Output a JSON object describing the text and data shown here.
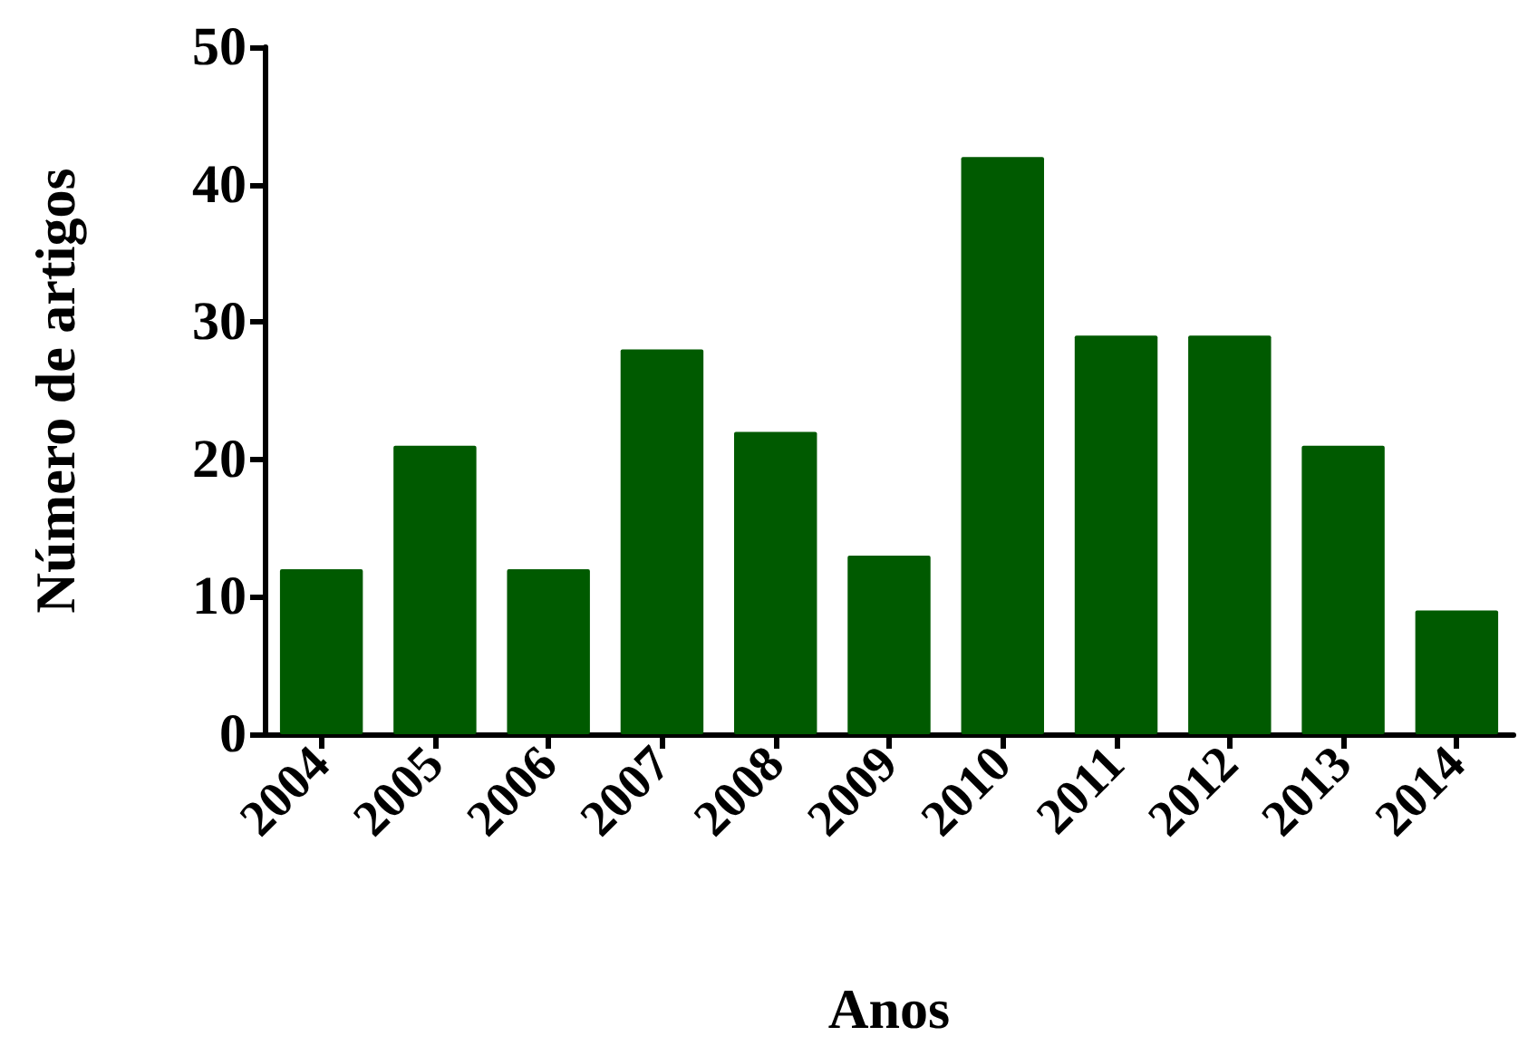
{
  "chart_data": {
    "type": "bar",
    "xlabel": "Anos",
    "ylabel": "Número de artigos",
    "categories": [
      "2004",
      "2005",
      "2006",
      "2007",
      "2008",
      "2009",
      "2010",
      "2011",
      "2012",
      "2013",
      "2014"
    ],
    "values": [
      12,
      21,
      12,
      28,
      22,
      13,
      42,
      29,
      29,
      21,
      9
    ],
    "color": "#005a00",
    "ylim": [
      0,
      50
    ],
    "yticks": [
      0,
      10,
      20,
      30,
      40,
      50
    ],
    "grid": false
  }
}
